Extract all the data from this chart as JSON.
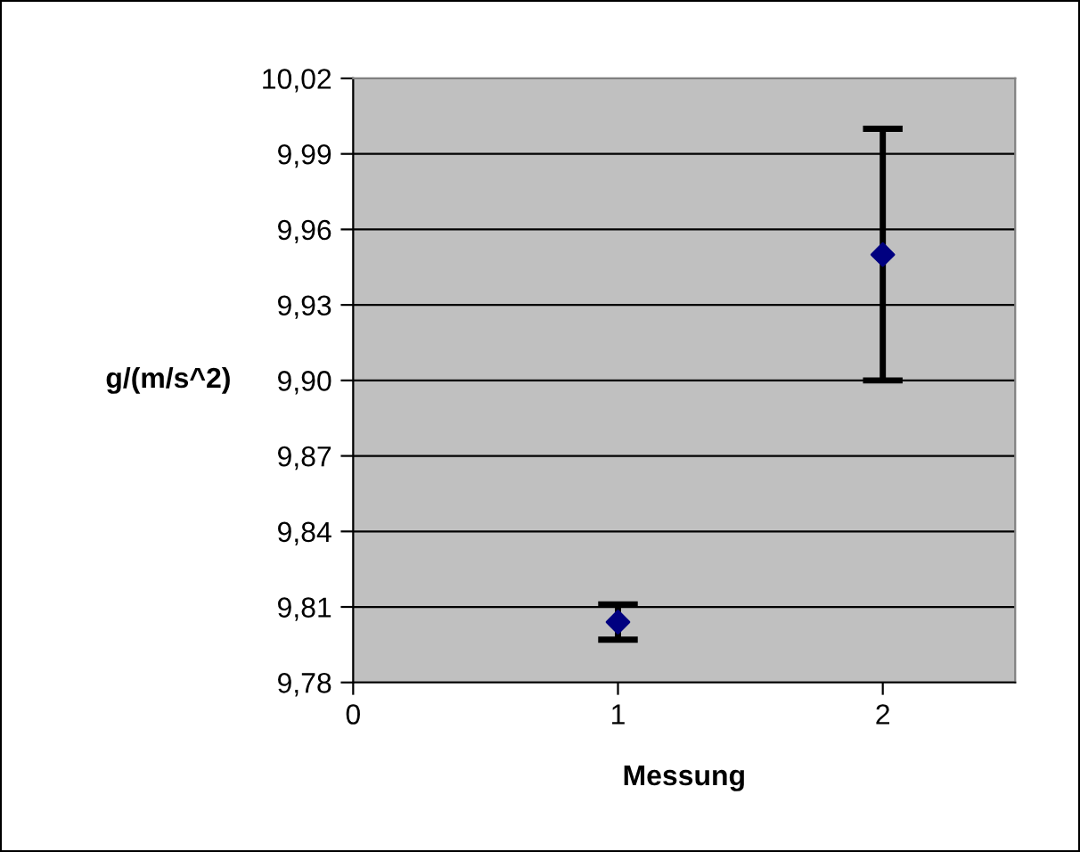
{
  "chart_data": {
    "type": "scatter",
    "xlabel": "Messung",
    "ylabel": "g/(m/s^2)",
    "x": [
      1,
      2
    ],
    "series": [
      {
        "color": "#000080",
        "values": [
          9.804,
          9.95
        ],
        "errors": [
          0.007,
          0.05
        ]
      }
    ],
    "marker": "diamond",
    "xlim": [
      0,
      2.5
    ],
    "xticks": [
      0,
      1,
      2
    ],
    "ylim": [
      9.78,
      10.02
    ],
    "yticks": [
      {
        "value": 9.78,
        "label": "9,78"
      },
      {
        "value": 9.81,
        "label": "9,81"
      },
      {
        "value": 9.84,
        "label": "9,84"
      },
      {
        "value": 9.87,
        "label": "9,87"
      },
      {
        "value": 9.9,
        "label": "9,90"
      },
      {
        "value": 9.93,
        "label": "9,93"
      },
      {
        "value": 9.96,
        "label": "9,96"
      },
      {
        "value": 9.99,
        "label": "9,99"
      },
      {
        "value": 10.02,
        "label": "10,02"
      }
    ],
    "grid": "y"
  }
}
